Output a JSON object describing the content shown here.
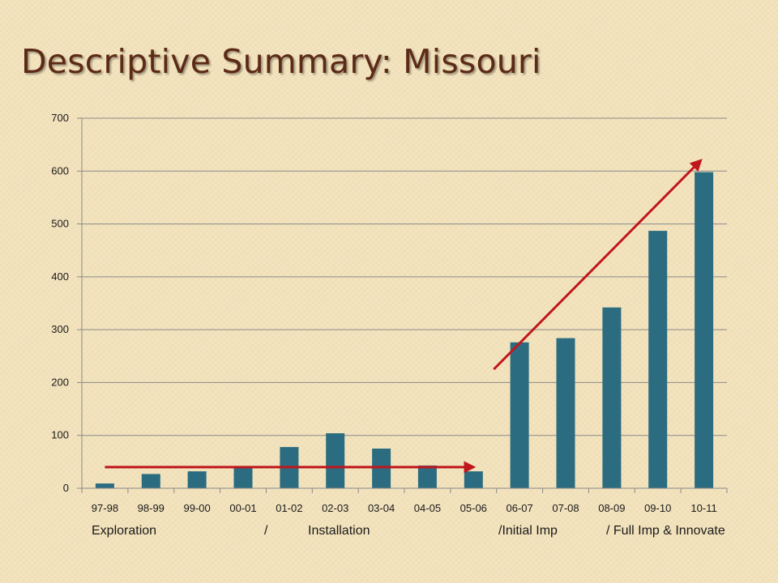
{
  "title": "Descriptive Summary: Missouri",
  "chart_data": {
    "type": "bar",
    "categories": [
      "97-98",
      "98-99",
      "99-00",
      "00-01",
      "01-02",
      "02-03",
      "03-04",
      "04-05",
      "05-06",
      "06-07",
      "07-08",
      "08-09",
      "09-10",
      "10-11"
    ],
    "values": [
      9,
      27,
      32,
      40,
      78,
      104,
      75,
      43,
      32,
      276,
      284,
      342,
      487,
      598
    ],
    "ylim": [
      0,
      700
    ],
    "yticks": [
      0,
      100,
      200,
      300,
      400,
      500,
      600,
      700
    ],
    "xlabel": "",
    "ylabel": "",
    "grid": true,
    "legend": "none",
    "bar_color": "#2b6c80",
    "grid_color": "#8a8a8a",
    "arrow_color": "#c0171c",
    "trend_arrows": [
      {
        "from": {
          "x": "97-98",
          "y": 40
        },
        "to": {
          "x": "05-06",
          "y": 40
        }
      },
      {
        "from": {
          "x": "05-06",
          "y": 225
        },
        "to": {
          "x": "10-11",
          "y": 620
        }
      }
    ],
    "phase_labels": [
      "Exploration",
      "/",
      "Installation",
      "/Initial Imp",
      "/ Full Imp & Innovate"
    ]
  }
}
